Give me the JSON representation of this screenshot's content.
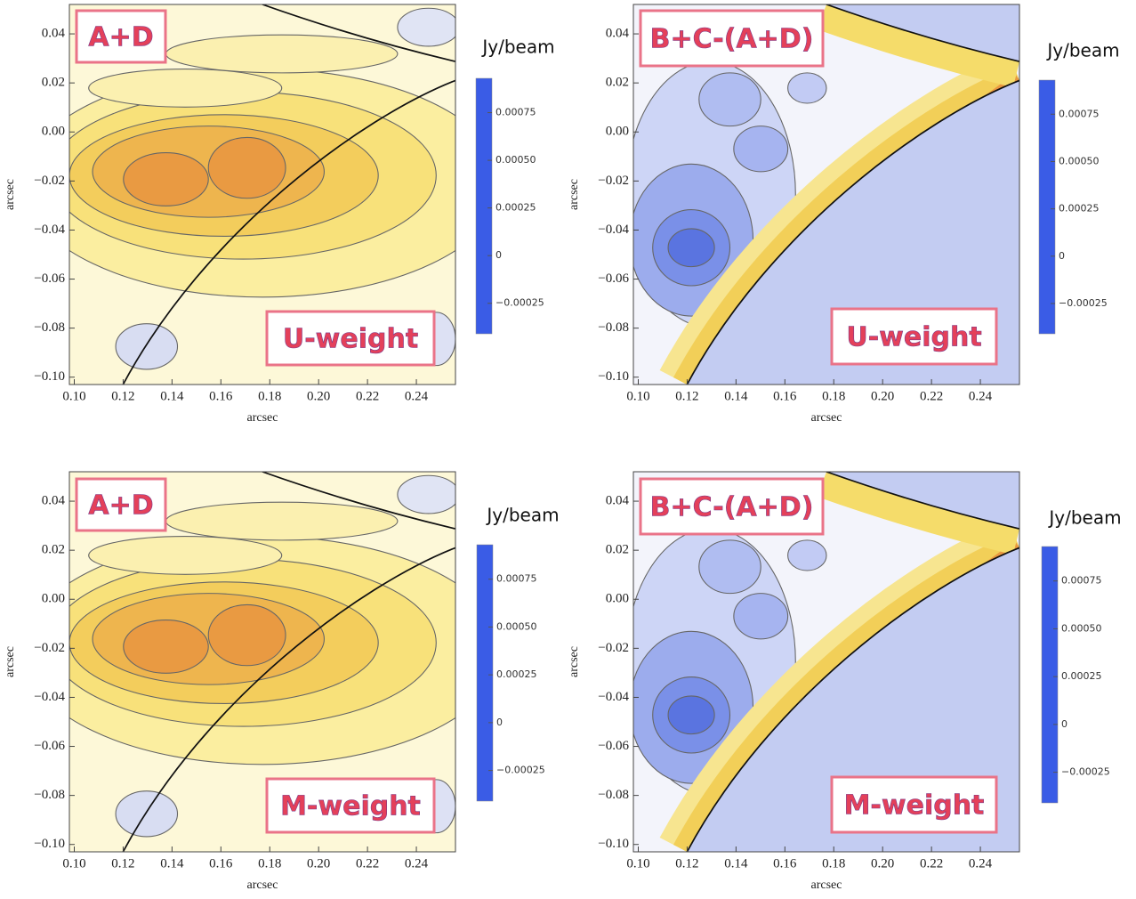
{
  "chart_data": [
    {
      "type": "contour",
      "title": "A+D",
      "annotation": "U-weight",
      "xlabel": "arcsec",
      "ylabel": "arcsec",
      "xlim": [
        0.098,
        0.256
      ],
      "ylim": [
        -0.103,
        0.052
      ],
      "xticks": [
        {
          "value": 0.1,
          "label": "0.10"
        },
        0.12,
        0.14,
        0.16,
        0.18,
        {
          "value": 0.2,
          "label": "0.20"
        },
        0.22,
        0.24
      ],
      "yticks": [
        0.04,
        0.02,
        {
          "value": 0,
          "label": "0.00"
        },
        {
          "value": -0.02,
          "label": "−0.02"
        },
        {
          "value": -0.04,
          "label": "−0.04"
        },
        {
          "value": -0.06,
          "label": "−0.06"
        },
        {
          "value": -0.08,
          "label": "−0.08"
        },
        {
          "value": -0.1,
          "label": "−0.10"
        }
      ],
      "colorbar": {
        "label": "Jy/beam",
        "lim": [
          -0.00041,
          0.00093
        ],
        "colors": [
          "#3a5ce6",
          "#ffffff",
          "#f5e04a",
          "#e98c3a",
          "#d4262a"
        ],
        "ticks": [
          0.00075,
          {
            "value": 0.0005,
            "label": "0.00050"
          },
          0.00025,
          0,
          {
            "value": -0.00025,
            "label": "−0.00025"
          }
        ]
      }
    },
    {
      "type": "contour",
      "title": "B+C-(A+D)",
      "annotation": "U-weight",
      "xlabel": "arcsec",
      "ylabel": "arcsec",
      "xlim": [
        0.098,
        0.256
      ],
      "ylim": [
        -0.103,
        0.052
      ],
      "xticks": [
        {
          "value": 0.1,
          "label": "0.10"
        },
        0.12,
        0.14,
        0.16,
        0.18,
        {
          "value": 0.2,
          "label": "0.20"
        },
        0.22,
        0.24
      ],
      "yticks": [
        0.04,
        0.02,
        {
          "value": 0,
          "label": "0.00"
        },
        {
          "value": -0.02,
          "label": "−0.02"
        },
        {
          "value": -0.04,
          "label": "−0.04"
        },
        {
          "value": -0.06,
          "label": "−0.06"
        },
        {
          "value": -0.08,
          "label": "−0.08"
        },
        {
          "value": -0.1,
          "label": "−0.10"
        }
      ],
      "colorbar": {
        "label": "Jy/beam",
        "lim": [
          -0.00041,
          0.00093
        ],
        "colors": [
          "#3a5ce6",
          "#ffffff",
          "#f5e04a",
          "#e98c3a",
          "#d4262a"
        ],
        "ticks": [
          0.00075,
          {
            "value": 0.0005,
            "label": "0.00050"
          },
          0.00025,
          0,
          {
            "value": -0.00025,
            "label": "−0.00025"
          }
        ]
      }
    },
    {
      "type": "contour",
      "title": "A+D",
      "annotation": "M-weight",
      "xlabel": "arcsec",
      "ylabel": "arcsec",
      "xlim": [
        0.098,
        0.256
      ],
      "ylim": [
        -0.103,
        0.052
      ],
      "xticks": [
        {
          "value": 0.1,
          "label": "0.10"
        },
        0.12,
        0.14,
        0.16,
        0.18,
        {
          "value": 0.2,
          "label": "0.20"
        },
        0.22,
        0.24
      ],
      "yticks": [
        0.04,
        0.02,
        {
          "value": 0,
          "label": "0.00"
        },
        {
          "value": -0.02,
          "label": "−0.02"
        },
        {
          "value": -0.04,
          "label": "−0.04"
        },
        {
          "value": -0.06,
          "label": "−0.06"
        },
        {
          "value": -0.08,
          "label": "−0.08"
        },
        {
          "value": -0.1,
          "label": "−0.10"
        }
      ],
      "colorbar": {
        "label": "Jy/beam",
        "lim": [
          -0.00041,
          0.00093
        ],
        "colors": [
          "#3a5ce6",
          "#ffffff",
          "#f5e04a",
          "#e98c3a",
          "#d4262a"
        ],
        "ticks": [
          0.00075,
          {
            "value": 0.0005,
            "label": "0.00050"
          },
          0.00025,
          0,
          {
            "value": -0.00025,
            "label": "−0.00025"
          }
        ]
      }
    },
    {
      "type": "contour",
      "title": "B+C-(A+D)",
      "annotation": "M-weight",
      "xlabel": "arcsec",
      "ylabel": "arcsec",
      "xlim": [
        0.098,
        0.256
      ],
      "ylim": [
        -0.103,
        0.052
      ],
      "xticks": [
        {
          "value": 0.1,
          "label": "0.10"
        },
        0.12,
        0.14,
        0.16,
        0.18,
        {
          "value": 0.2,
          "label": "0.20"
        },
        0.22,
        0.24
      ],
      "yticks": [
        0.04,
        0.02,
        {
          "value": 0,
          "label": "0.00"
        },
        {
          "value": -0.02,
          "label": "−0.02"
        },
        {
          "value": -0.04,
          "label": "−0.04"
        },
        {
          "value": -0.06,
          "label": "−0.06"
        },
        {
          "value": -0.08,
          "label": "−0.08"
        },
        {
          "value": -0.1,
          "label": "−0.10"
        }
      ],
      "colorbar": {
        "label": "Jy/beam",
        "lim": [
          -0.00041,
          0.00093
        ],
        "colors": [
          "#3a5ce6",
          "#ffffff",
          "#f5e04a",
          "#e98c3a",
          "#d4262a"
        ],
        "ticks": [
          0.00075,
          {
            "value": 0.0005,
            "label": "0.00050"
          },
          0.00025,
          0,
          {
            "value": -0.00025,
            "label": "−0.00025"
          }
        ]
      }
    }
  ]
}
